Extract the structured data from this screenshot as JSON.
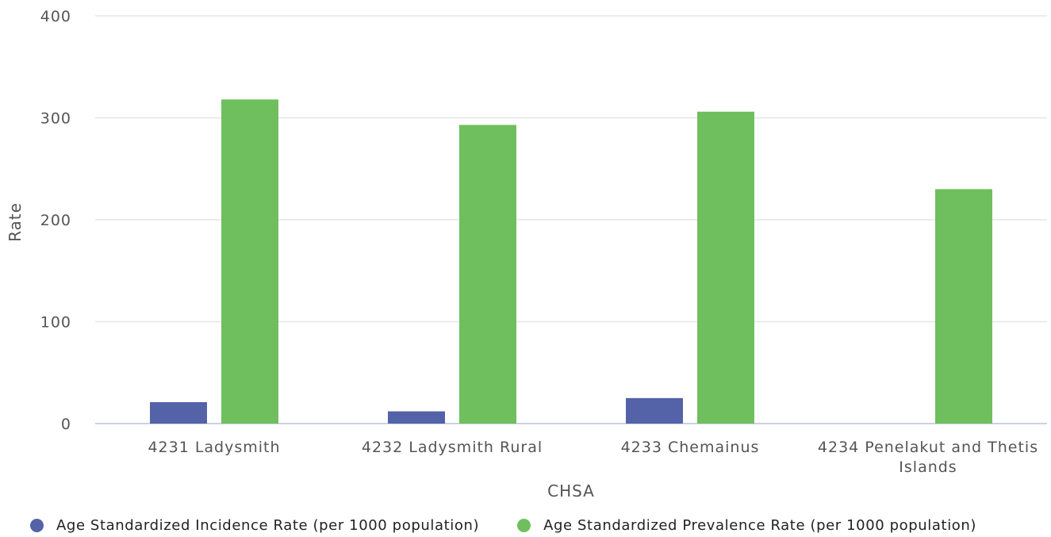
{
  "chart_data": {
    "type": "bar",
    "title": "",
    "xlabel": "CHSA",
    "ylabel": "Rate",
    "ylim": [
      0,
      400
    ],
    "yticks": [
      0,
      100,
      200,
      300,
      400
    ],
    "grid": true,
    "legend_position": "bottom",
    "categories": [
      [
        "4231 Ladysmith"
      ],
      [
        "4232 Ladysmith Rural"
      ],
      [
        "4233 Chemainus"
      ],
      [
        "4234 Penelakut and Thetis",
        "Islands"
      ]
    ],
    "series": [
      {
        "name": "Age Standardized Incidence Rate (per 1000 population)",
        "color": "#5462a8",
        "values": [
          21,
          12,
          25,
          null
        ]
      },
      {
        "name": "Age Standardized Prevalence Rate (per 1000 population)",
        "color": "#70bf5e",
        "values": [
          318,
          293,
          306,
          230
        ]
      }
    ]
  }
}
